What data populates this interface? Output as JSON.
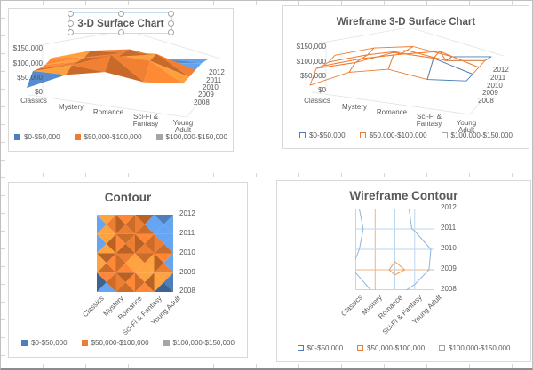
{
  "colors": {
    "blue": "#4e7fba",
    "orange": "#ed7d31",
    "gray": "#a5a5a5",
    "axis_text": "#595959",
    "chart_border": "#d9d9d9",
    "selection_border": "#c5ddf2",
    "contour_grid": "#bdd7ee",
    "contour_grid_orange": "#f2b583",
    "contour_line_blue": "#8eb4dc",
    "contour_line_orange": "#ed9a56",
    "floor_line": "#e3e3e3"
  },
  "charts": [
    {
      "title": "3-D Surface Chart",
      "kind": "surface",
      "wireframe": false,
      "title_selected": true
    },
    {
      "title": "Wireframe 3-D Surface Chart",
      "kind": "surface",
      "wireframe": true,
      "title_selected": false
    },
    {
      "title": "Contour",
      "kind": "contour",
      "wireframe": false,
      "title_selected": false
    },
    {
      "title": "Wireframe Contour",
      "kind": "contour",
      "wireframe": true,
      "title_selected": false
    }
  ],
  "chart_data": {
    "type": "heatmap",
    "note": "Four Excel surface-chart variants of the same dataset; values in $ estimated from color bands",
    "titles": [
      "3-D Surface Chart",
      "Wireframe 3-D Surface Chart",
      "Contour",
      "Wireframe Contour"
    ],
    "categories": [
      "Classics",
      "Mystery",
      "Romance",
      "Sci-Fi & Fantasy",
      "Young Adult"
    ],
    "series": [
      {
        "name": "2008",
        "values": [
          15000,
          60000,
          70000,
          35000,
          30000
        ]
      },
      {
        "name": "2009",
        "values": [
          55000,
          75000,
          110000,
          90000,
          35000
        ]
      },
      {
        "name": "2010",
        "values": [
          45000,
          70000,
          85000,
          95000,
          40000
        ]
      },
      {
        "name": "2011",
        "values": [
          40000,
          65000,
          80000,
          45000,
          45000
        ]
      },
      {
        "name": "2012",
        "values": [
          45000,
          70000,
          75000,
          40000,
          40000
        ]
      }
    ],
    "bands": [
      {
        "label": "$0-$50,000",
        "color": "#4e7fba",
        "range": [
          0,
          50000
        ]
      },
      {
        "label": "$50,000-$100,000",
        "color": "#ed7d31",
        "range": [
          50000,
          100000
        ]
      },
      {
        "label": "$100,000-$150,000",
        "color": "#a5a5a5",
        "range": [
          100000,
          150000
        ]
      }
    ],
    "value_axis": {
      "min": 0,
      "max": 150000,
      "ticks": [
        "$0",
        "$50,000",
        "$100,000",
        "$150,000"
      ]
    },
    "legend_position": "bottom"
  }
}
